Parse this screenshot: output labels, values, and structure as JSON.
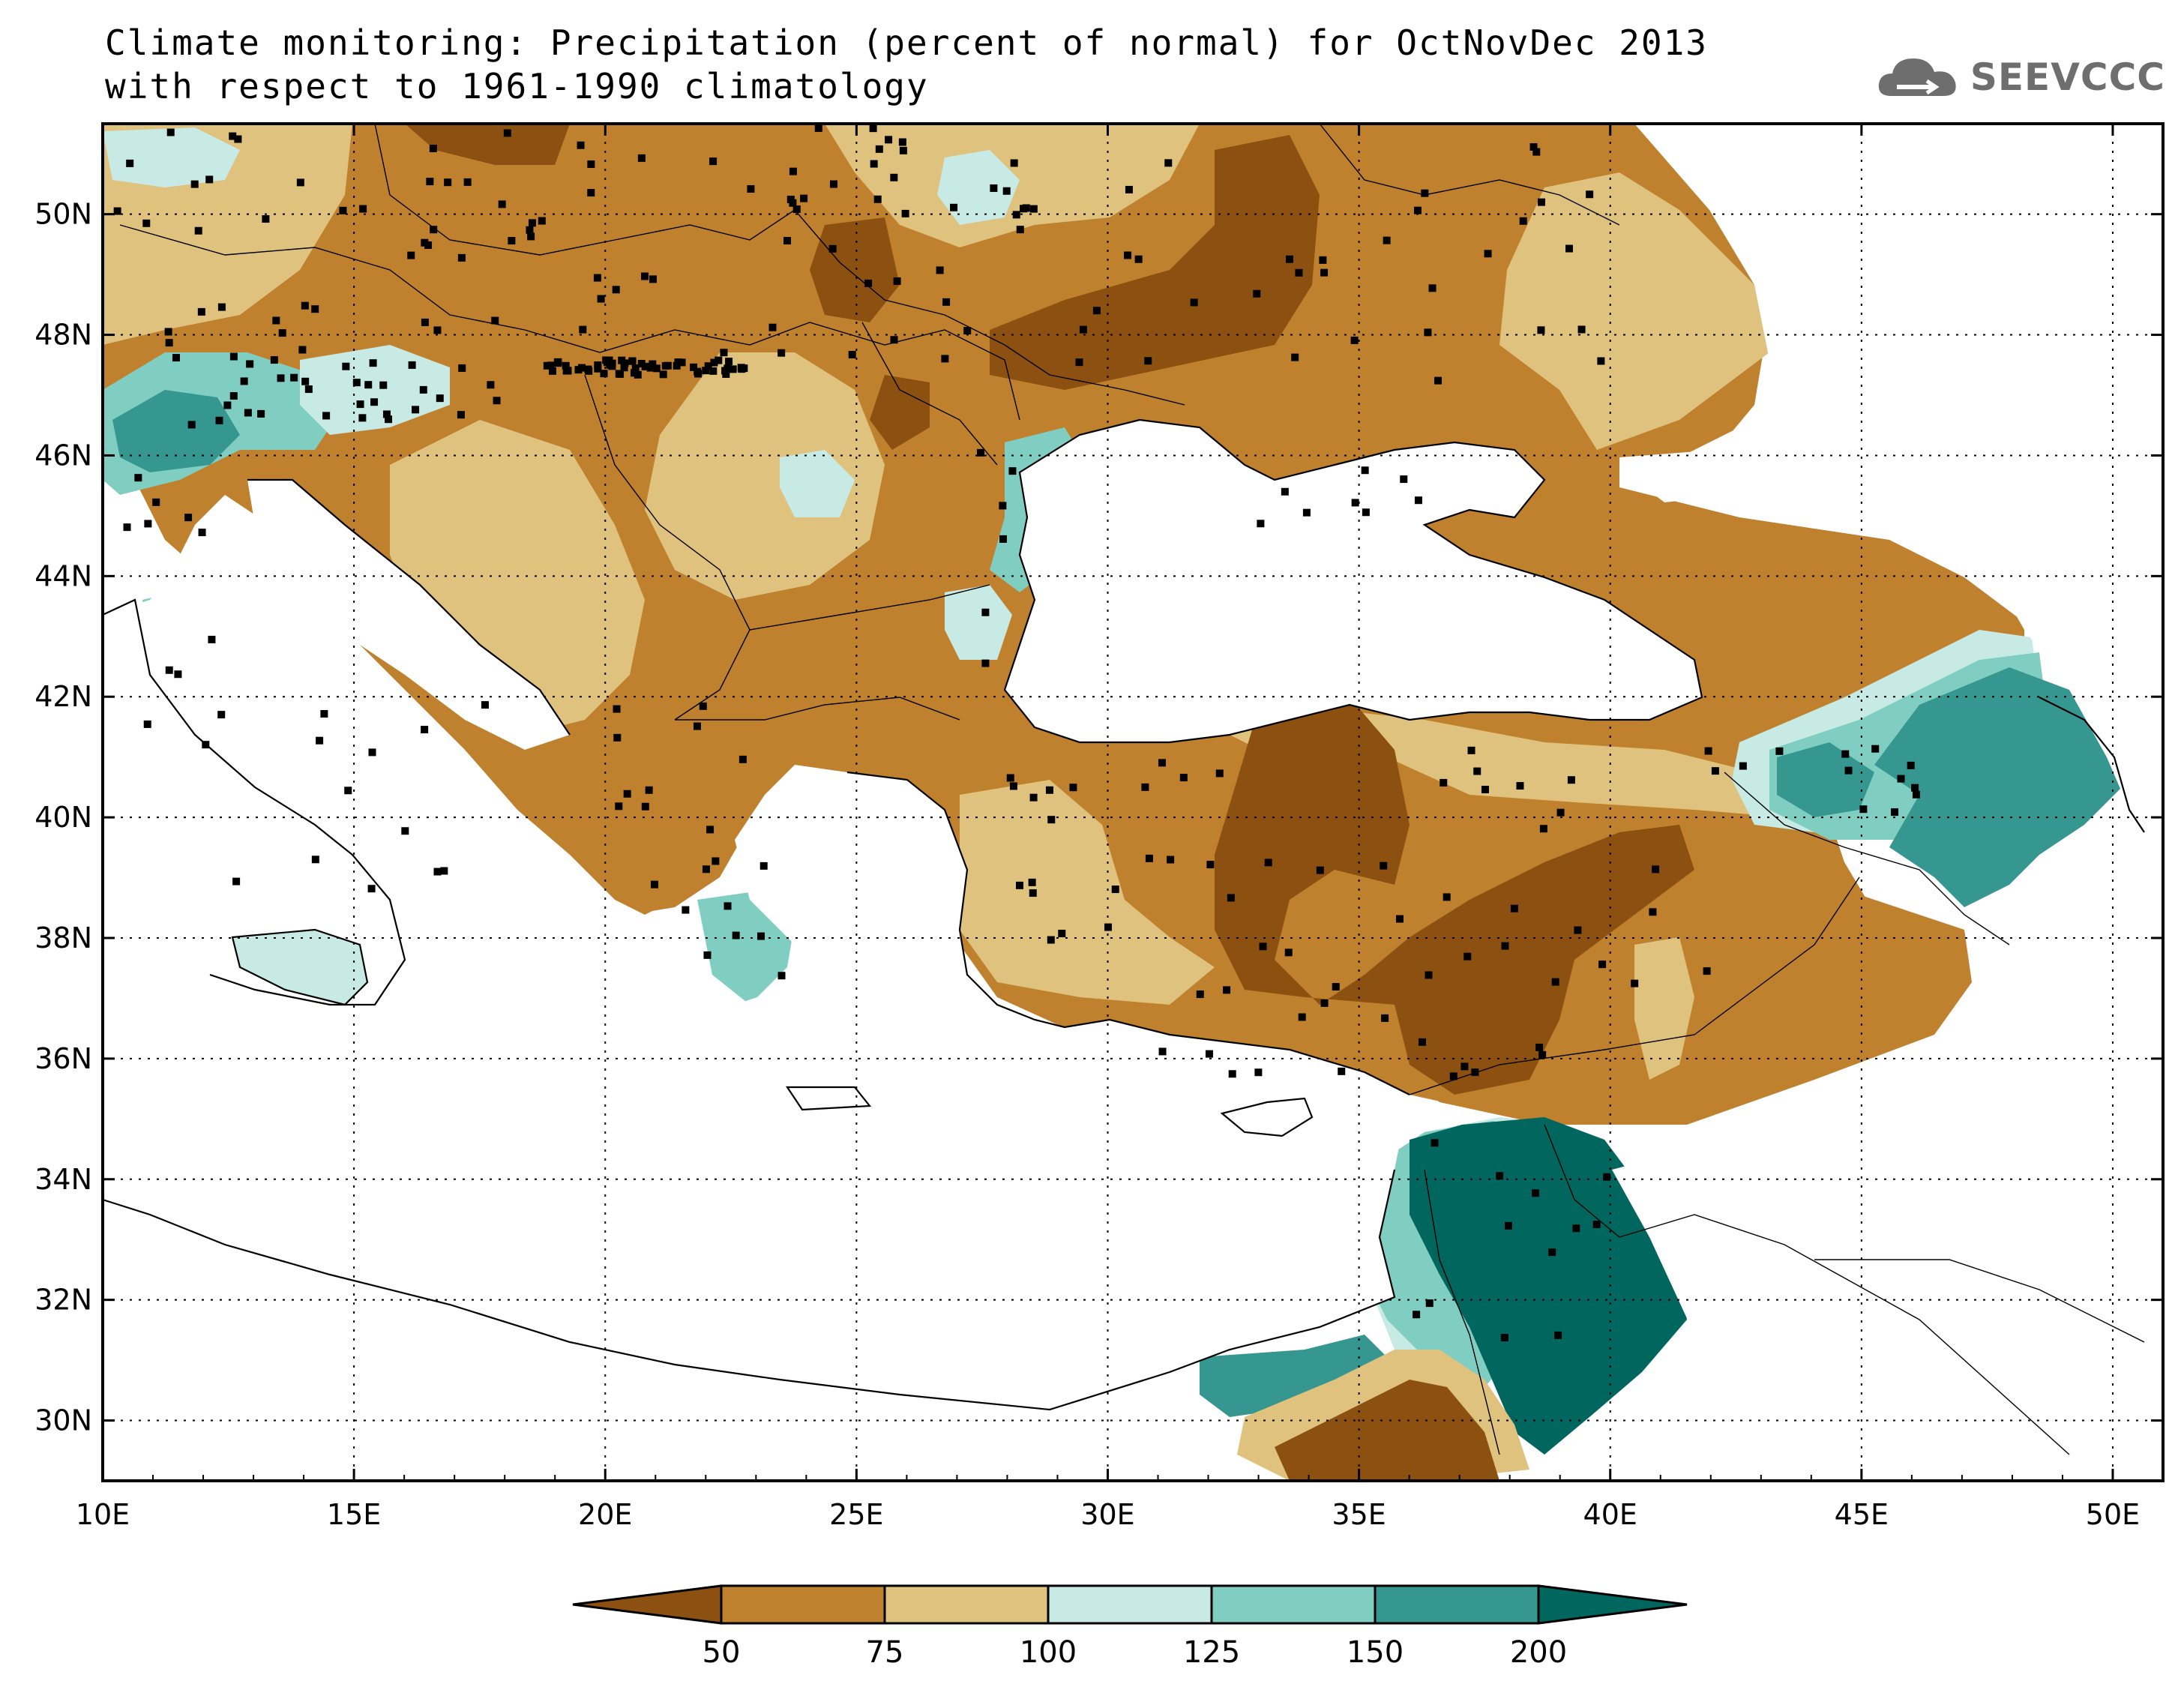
{
  "title": {
    "line1": "Climate monitoring: Precipitation (percent of normal) for OctNovDec 2013",
    "line2": "with respect to 1961-1990 climatology"
  },
  "logo": {
    "text": "SEEVCCC",
    "icon": "cloud-icon"
  },
  "map": {
    "lon_range": [
      10,
      51
    ],
    "lat_range": [
      29,
      51.5
    ],
    "lon_ticks": [
      "10E",
      "15E",
      "20E",
      "25E",
      "30E",
      "35E",
      "40E",
      "45E",
      "50E"
    ],
    "lat_ticks": [
      "30N",
      "32N",
      "34N",
      "36N",
      "38N",
      "40N",
      "42N",
      "44N",
      "46N",
      "48N",
      "50N"
    ],
    "grid": "dotted",
    "station_marker": "black-square"
  },
  "legend": {
    "labels": [
      "50",
      "75",
      "100",
      "125",
      "150",
      "200"
    ],
    "colors": [
      "#8c5110",
      "#bf812e",
      "#dfc27e",
      "#c8eae5",
      "#80cdc1",
      "#35978f",
      "#01665e"
    ]
  },
  "colors": {
    "very_dry": "#8c5110",
    "dry": "#bf812e",
    "slightly_dry": "#dfc27e",
    "normal_wet": "#c8eae5",
    "wet": "#80cdc1",
    "very_wet": "#35978f",
    "extreme_wet": "#01665e"
  }
}
